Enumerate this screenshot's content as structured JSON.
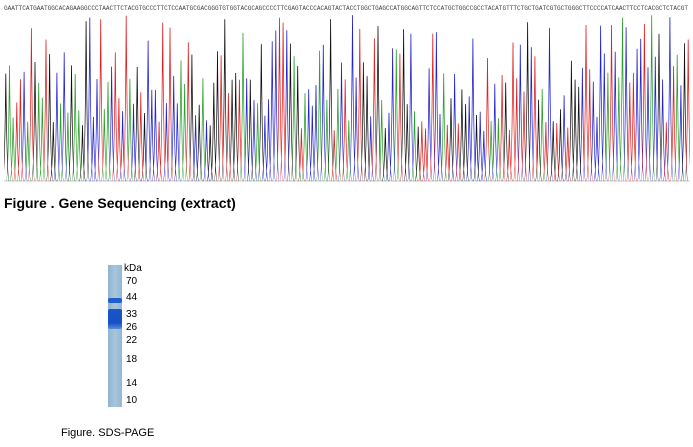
{
  "sequencing": {
    "sequence": "GAATTCATGAATGGCACAGAAGGCCCTAACTTCTACGTGCCCTTCTCCAATGCGACGGGTGTGGTACGCAGCCCCTTCGAGTACCCACAGTACTACCTGGCTGAGCCATGGCAGTTCTCCATGCTGGCCGCCTACATGTTTCTGCTGATCGTGCTGGGCTTCCCCATCAACTTCCTCACGCTCTACGT",
    "title": "Figure . Gene Sequencing (extract)",
    "channel_colors": {
      "A": "#2aa02a",
      "C": "#2222d0",
      "G": "#111111",
      "T": "#e02020"
    }
  },
  "sds_page": {
    "unit": "kDa",
    "markers": [
      "70",
      "44",
      "33",
      "26",
      "22",
      "18",
      "14",
      "10"
    ],
    "band_color": "#1a55c8",
    "caption": "Figure. SDS-PAGE"
  }
}
